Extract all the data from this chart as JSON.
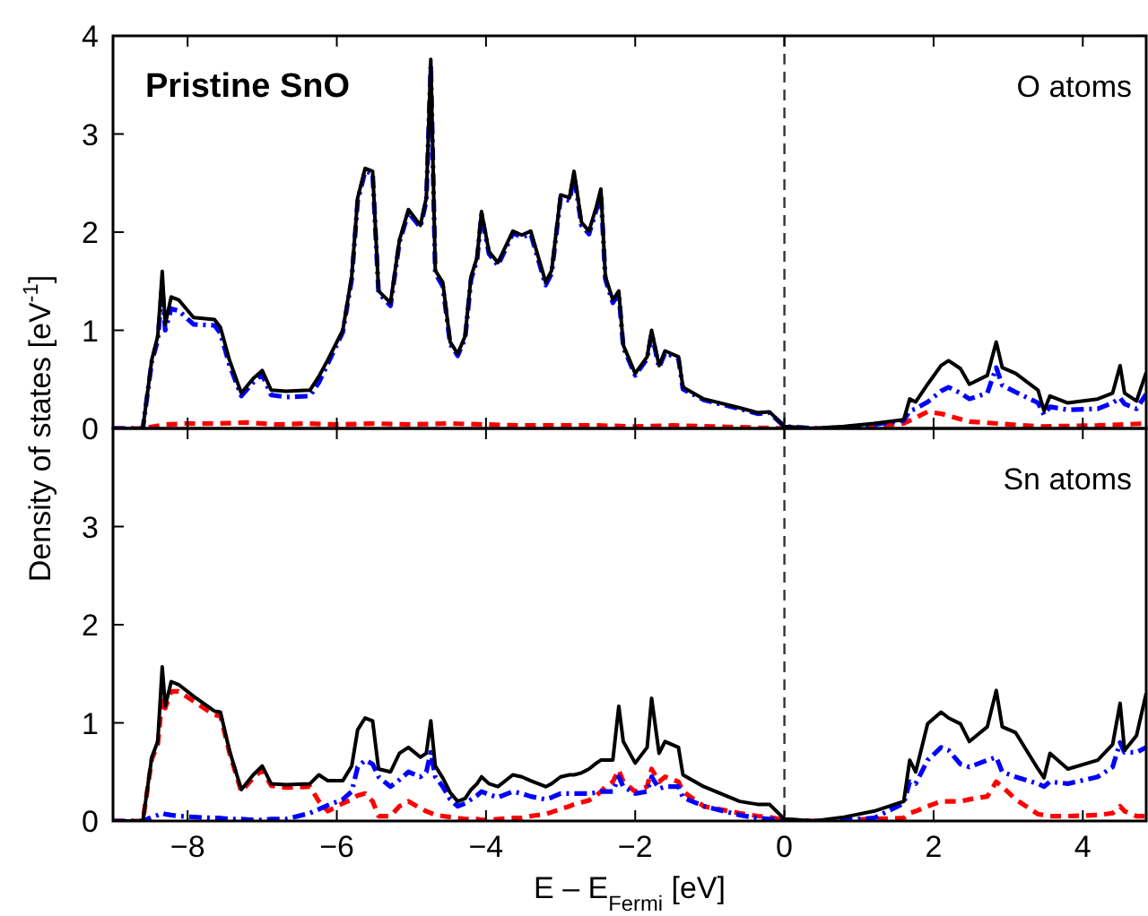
{
  "chart_data": [
    {
      "type": "line",
      "title": "Pristine SnO",
      "ylabel": "Density of states [eV$^{-1}$]",
      "annotations": [
        "O atoms"
      ],
      "xlim": [
        -9,
        4.85
      ],
      "xticks": [
        -8,
        -6,
        -4,
        -2,
        0,
        2,
        4
      ],
      "ylim": [
        0,
        4
      ],
      "yticks": [
        0,
        1,
        2,
        3,
        4
      ],
      "tick_labels": "y",
      "ref_lines": [
        {
          "axis": "x",
          "value": 0,
          "color": "#333333",
          "line_style": "dashed"
        }
      ],
      "x": [
        -9,
        -8.6,
        -8.48,
        -8.4,
        -8.34,
        -8.3,
        -8.22,
        -8.12,
        -7.92,
        -7.64,
        -7.56,
        -7.44,
        -7.28,
        -7.12,
        -7.0,
        -6.88,
        -6.68,
        -6.36,
        -6.24,
        -6.12,
        -5.92,
        -5.8,
        -5.72,
        -5.62,
        -5.52,
        -5.44,
        -5.28,
        -5.16,
        -5.04,
        -4.88,
        -4.8,
        -4.74,
        -4.68,
        -4.58,
        -4.48,
        -4.38,
        -4.28,
        -4.2,
        -4.12,
        -4.06,
        -3.96,
        -3.84,
        -3.64,
        -3.52,
        -3.4,
        -3.2,
        -3.12,
        -3.0,
        -2.88,
        -2.82,
        -2.72,
        -2.62,
        -2.52,
        -2.46,
        -2.4,
        -2.3,
        -2.22,
        -2.16,
        -2.0,
        -1.84,
        -1.78,
        -1.68,
        -1.6,
        -1.42,
        -1.36,
        -1.08,
        -0.6,
        -0.36,
        -0.2,
        0,
        0.4,
        0.8,
        1.2,
        1.6,
        1.68,
        1.76,
        1.92,
        2.1,
        2.2,
        2.36,
        2.48,
        2.72,
        2.84,
        2.92,
        3.1,
        3.4,
        3.48,
        3.56,
        3.8,
        4.2,
        4.4,
        4.5,
        4.56,
        4.72,
        4.85
      ],
      "series": [
        {
          "color": "#ff0000",
          "line_style": "dashed",
          "x": [
            -9,
            -8.6,
            -8.3,
            -8.0,
            -7.6,
            -7.2,
            -6.8,
            -6.4,
            -6.0,
            -5.5,
            -5.0,
            -4.5,
            -4.0,
            -3.5,
            -3.0,
            -2.5,
            -2.0,
            -1.5,
            -1.0,
            -0.5,
            0,
            0.8,
            1.6,
            1.92,
            2.1,
            2.48,
            2.84,
            3.4,
            4.2,
            4.85
          ],
          "values": [
            0,
            0,
            0.04,
            0.05,
            0.05,
            0.06,
            0.04,
            0.05,
            0.04,
            0.05,
            0.04,
            0.05,
            0.04,
            0.03,
            0.03,
            0.03,
            0.02,
            0.03,
            0.02,
            0.01,
            0,
            0,
            0.05,
            0.17,
            0.15,
            0.07,
            0.05,
            0.02,
            0.03,
            0.05
          ]
        },
        {
          "color": "#0000ff",
          "line_style": "dashdot",
          "values": [
            0,
            0,
            0.68,
            0.9,
            1.45,
            1.0,
            1.22,
            1.2,
            1.06,
            1.05,
            0.97,
            0.65,
            0.33,
            0.47,
            0.55,
            0.34,
            0.32,
            0.33,
            0.47,
            0.66,
            0.98,
            1.52,
            2.32,
            2.62,
            2.6,
            1.38,
            1.25,
            1.9,
            2.2,
            2.05,
            2.32,
            3.7,
            1.58,
            1.45,
            0.86,
            0.74,
            0.92,
            1.52,
            1.72,
            2.18,
            1.78,
            1.66,
            1.99,
            1.95,
            1.98,
            1.46,
            1.58,
            2.35,
            2.32,
            2.58,
            2.07,
            1.98,
            2.23,
            2.4,
            1.52,
            1.28,
            1.37,
            0.83,
            0.54,
            0.71,
            0.97,
            0.62,
            0.77,
            0.71,
            0.4,
            0.29,
            0.2,
            0.15,
            0.16,
            0.02,
            0,
            0.01,
            0.04,
            0.08,
            0.18,
            0.2,
            0.27,
            0.38,
            0.42,
            0.36,
            0.3,
            0.36,
            0.62,
            0.44,
            0.37,
            0.26,
            0.14,
            0.22,
            0.19,
            0.2,
            0.26,
            0.31,
            0.25,
            0.2,
            0.35
          ]
        },
        {
          "color": "#000000",
          "line_style": "solid",
          "values": [
            0,
            0,
            0.7,
            0.94,
            1.6,
            1.06,
            1.34,
            1.31,
            1.13,
            1.11,
            1.03,
            0.7,
            0.36,
            0.51,
            0.59,
            0.39,
            0.38,
            0.39,
            0.53,
            0.7,
            1.0,
            1.55,
            2.35,
            2.65,
            2.62,
            1.4,
            1.28,
            1.92,
            2.23,
            2.07,
            2.35,
            3.76,
            1.61,
            1.49,
            0.88,
            0.76,
            0.94,
            1.55,
            1.74,
            2.21,
            1.8,
            1.69,
            2.01,
            1.97,
            2.01,
            1.49,
            1.61,
            2.38,
            2.35,
            2.62,
            2.1,
            2.01,
            2.26,
            2.44,
            1.55,
            1.31,
            1.4,
            0.85,
            0.56,
            0.73,
            1.0,
            0.64,
            0.79,
            0.73,
            0.42,
            0.3,
            0.21,
            0.16,
            0.17,
            0.02,
            0,
            0.02,
            0.05,
            0.09,
            0.3,
            0.27,
            0.45,
            0.64,
            0.69,
            0.61,
            0.45,
            0.54,
            0.88,
            0.62,
            0.56,
            0.39,
            0.18,
            0.33,
            0.26,
            0.3,
            0.36,
            0.64,
            0.36,
            0.28,
            0.57
          ]
        }
      ]
    },
    {
      "type": "line",
      "xlabel": "E – E$_{Fermi}$ [eV]",
      "annotations": [
        "Sn atoms"
      ],
      "xlim": [
        -9,
        4.85
      ],
      "xticks": [
        -8,
        -6,
        -4,
        -2,
        0,
        2,
        4
      ],
      "ylim": [
        0,
        4
      ],
      "yticks": [
        0,
        1,
        2,
        3
      ],
      "ref_lines": [
        {
          "axis": "x",
          "value": 0,
          "color": "#333333",
          "line_style": "dashed"
        }
      ],
      "x": [
        -9,
        -8.6,
        -8.48,
        -8.4,
        -8.34,
        -8.3,
        -8.22,
        -8.12,
        -7.92,
        -7.64,
        -7.56,
        -7.44,
        -7.28,
        -7.12,
        -7.0,
        -6.88,
        -6.68,
        -6.36,
        -6.24,
        -6.12,
        -5.92,
        -5.8,
        -5.72,
        -5.62,
        -5.52,
        -5.44,
        -5.28,
        -5.16,
        -5.04,
        -4.88,
        -4.8,
        -4.74,
        -4.68,
        -4.58,
        -4.48,
        -4.38,
        -4.28,
        -4.2,
        -4.12,
        -4.06,
        -3.96,
        -3.84,
        -3.64,
        -3.52,
        -3.4,
        -3.2,
        -3.12,
        -3.0,
        -2.88,
        -2.82,
        -2.72,
        -2.62,
        -2.52,
        -2.46,
        -2.4,
        -2.3,
        -2.22,
        -2.16,
        -2.0,
        -1.84,
        -1.78,
        -1.68,
        -1.6,
        -1.42,
        -1.36,
        -1.08,
        -0.6,
        -0.36,
        -0.2,
        0,
        0.4,
        0.8,
        1.2,
        1.6,
        1.68,
        1.76,
        1.92,
        2.1,
        2.2,
        2.36,
        2.48,
        2.72,
        2.84,
        2.92,
        3.1,
        3.4,
        3.48,
        3.56,
        3.8,
        4.2,
        4.4,
        4.5,
        4.56,
        4.72,
        4.85
      ],
      "series": [
        {
          "color": "#ff0000",
          "line_style": "dashed",
          "values": [
            0,
            0,
            0.63,
            0.78,
            1.25,
            1.15,
            1.32,
            1.32,
            1.22,
            1.08,
            1.07,
            0.7,
            0.3,
            0.44,
            0.52,
            0.36,
            0.34,
            0.35,
            0.2,
            0.1,
            0.18,
            0.22,
            0.26,
            0.28,
            0.2,
            0.05,
            0.05,
            0.15,
            0.2,
            0.13,
            0.1,
            0.08,
            0.06,
            0.05,
            0.04,
            0.03,
            0.02,
            0.02,
            0.02,
            0.01,
            0.01,
            0.02,
            0.03,
            0.03,
            0.05,
            0.07,
            0.09,
            0.12,
            0.15,
            0.17,
            0.19,
            0.21,
            0.26,
            0.3,
            0.35,
            0.4,
            0.52,
            0.4,
            0.3,
            0.35,
            0.53,
            0.4,
            0.45,
            0.4,
            0.3,
            0.15,
            0.08,
            0.05,
            0.04,
            0.01,
            0,
            0.01,
            0.02,
            0.03,
            0.08,
            0.1,
            0.15,
            0.2,
            0.2,
            0.2,
            0.22,
            0.25,
            0.4,
            0.35,
            0.22,
            0.07,
            0.06,
            0.05,
            0.05,
            0.06,
            0.08,
            0.15,
            0.1,
            0.05,
            0.05
          ]
        },
        {
          "color": "#0000ff",
          "line_style": "dashdot",
          "values": [
            0,
            0,
            0.04,
            0.06,
            0.08,
            0.07,
            0.06,
            0.05,
            0.04,
            0.03,
            0.03,
            0.02,
            0.02,
            0.01,
            0.01,
            0.02,
            0.02,
            0.08,
            0.12,
            0.16,
            0.22,
            0.3,
            0.55,
            0.62,
            0.58,
            0.45,
            0.35,
            0.42,
            0.5,
            0.45,
            0.5,
            0.7,
            0.45,
            0.35,
            0.22,
            0.15,
            0.18,
            0.22,
            0.26,
            0.3,
            0.27,
            0.24,
            0.3,
            0.28,
            0.25,
            0.22,
            0.24,
            0.28,
            0.28,
            0.28,
            0.28,
            0.28,
            0.29,
            0.3,
            0.3,
            0.3,
            0.45,
            0.35,
            0.28,
            0.3,
            0.45,
            0.33,
            0.35,
            0.35,
            0.24,
            0.15,
            0.06,
            0.03,
            0.02,
            0.01,
            0,
            0.01,
            0.03,
            0.18,
            0.4,
            0.38,
            0.62,
            0.75,
            0.72,
            0.58,
            0.55,
            0.62,
            0.65,
            0.5,
            0.45,
            0.38,
            0.35,
            0.4,
            0.38,
            0.45,
            0.55,
            0.8,
            0.7,
            0.7,
            0.75
          ]
        },
        {
          "color": "#000000",
          "line_style": "solid",
          "values": [
            0,
            0,
            0.65,
            0.81,
            1.57,
            1.17,
            1.42,
            1.39,
            1.27,
            1.12,
            1.11,
            0.72,
            0.32,
            0.47,
            0.56,
            0.38,
            0.37,
            0.38,
            0.47,
            0.41,
            0.41,
            0.56,
            0.93,
            1.05,
            1.02,
            0.53,
            0.5,
            0.69,
            0.75,
            0.65,
            0.69,
            1.02,
            0.56,
            0.44,
            0.29,
            0.2,
            0.23,
            0.32,
            0.38,
            0.45,
            0.38,
            0.35,
            0.47,
            0.45,
            0.41,
            0.35,
            0.38,
            0.45,
            0.47,
            0.47,
            0.49,
            0.53,
            0.59,
            0.62,
            0.62,
            0.62,
            1.17,
            0.81,
            0.59,
            0.75,
            1.25,
            0.69,
            0.81,
            0.75,
            0.47,
            0.35,
            0.2,
            0.17,
            0.17,
            0.02,
            0,
            0.04,
            0.1,
            0.2,
            0.62,
            0.5,
            0.99,
            1.11,
            1.05,
            0.99,
            0.81,
            0.96,
            1.33,
            0.96,
            0.9,
            0.53,
            0.44,
            0.69,
            0.53,
            0.62,
            0.78,
            1.2,
            0.72,
            0.87,
            1.3
          ]
        }
      ]
    }
  ]
}
